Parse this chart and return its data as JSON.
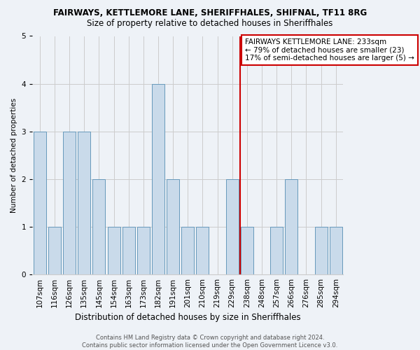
{
  "title": "FAIRWAYS, KETTLEMORE LANE, SHERIFFHALES, SHIFNAL, TF11 8RG",
  "subtitle": "Size of property relative to detached houses in Sheriffhales",
  "xlabel": "Distribution of detached houses by size in Sheriffhales",
  "ylabel": "Number of detached properties",
  "categories": [
    "107sqm",
    "116sqm",
    "126sqm",
    "135sqm",
    "145sqm",
    "154sqm",
    "163sqm",
    "173sqm",
    "182sqm",
    "191sqm",
    "201sqm",
    "210sqm",
    "219sqm",
    "229sqm",
    "238sqm",
    "248sqm",
    "257sqm",
    "266sqm",
    "276sqm",
    "285sqm",
    "294sqm"
  ],
  "values": [
    3,
    1,
    3,
    3,
    2,
    1,
    1,
    1,
    4,
    2,
    1,
    1,
    0,
    2,
    1,
    0,
    1,
    2,
    0,
    1,
    1
  ],
  "bar_color": "#c9daea",
  "bar_edge_color": "#6699bb",
  "grid_color": "#cccccc",
  "background_color": "#eef2f7",
  "vline_color": "#cc0000",
  "vline_x_index": 13.55,
  "annotation_text": "FAIRWAYS KETTLEMORE LANE: 233sqm\n← 79% of detached houses are smaller (23)\n17% of semi-detached houses are larger (5) →",
  "annotation_box_color": "white",
  "annotation_box_edge": "#cc0000",
  "footer_text": "Contains HM Land Registry data © Crown copyright and database right 2024.\nContains public sector information licensed under the Open Government Licence v3.0.",
  "ylim": [
    0,
    5
  ],
  "yticks": [
    0,
    1,
    2,
    3,
    4,
    5
  ],
  "title_fontsize": 8.5,
  "subtitle_fontsize": 8.5,
  "xlabel_fontsize": 8.5,
  "ylabel_fontsize": 7.5,
  "tick_fontsize": 7.5,
  "annotation_fontsize": 7.5,
  "footer_fontsize": 6.0
}
